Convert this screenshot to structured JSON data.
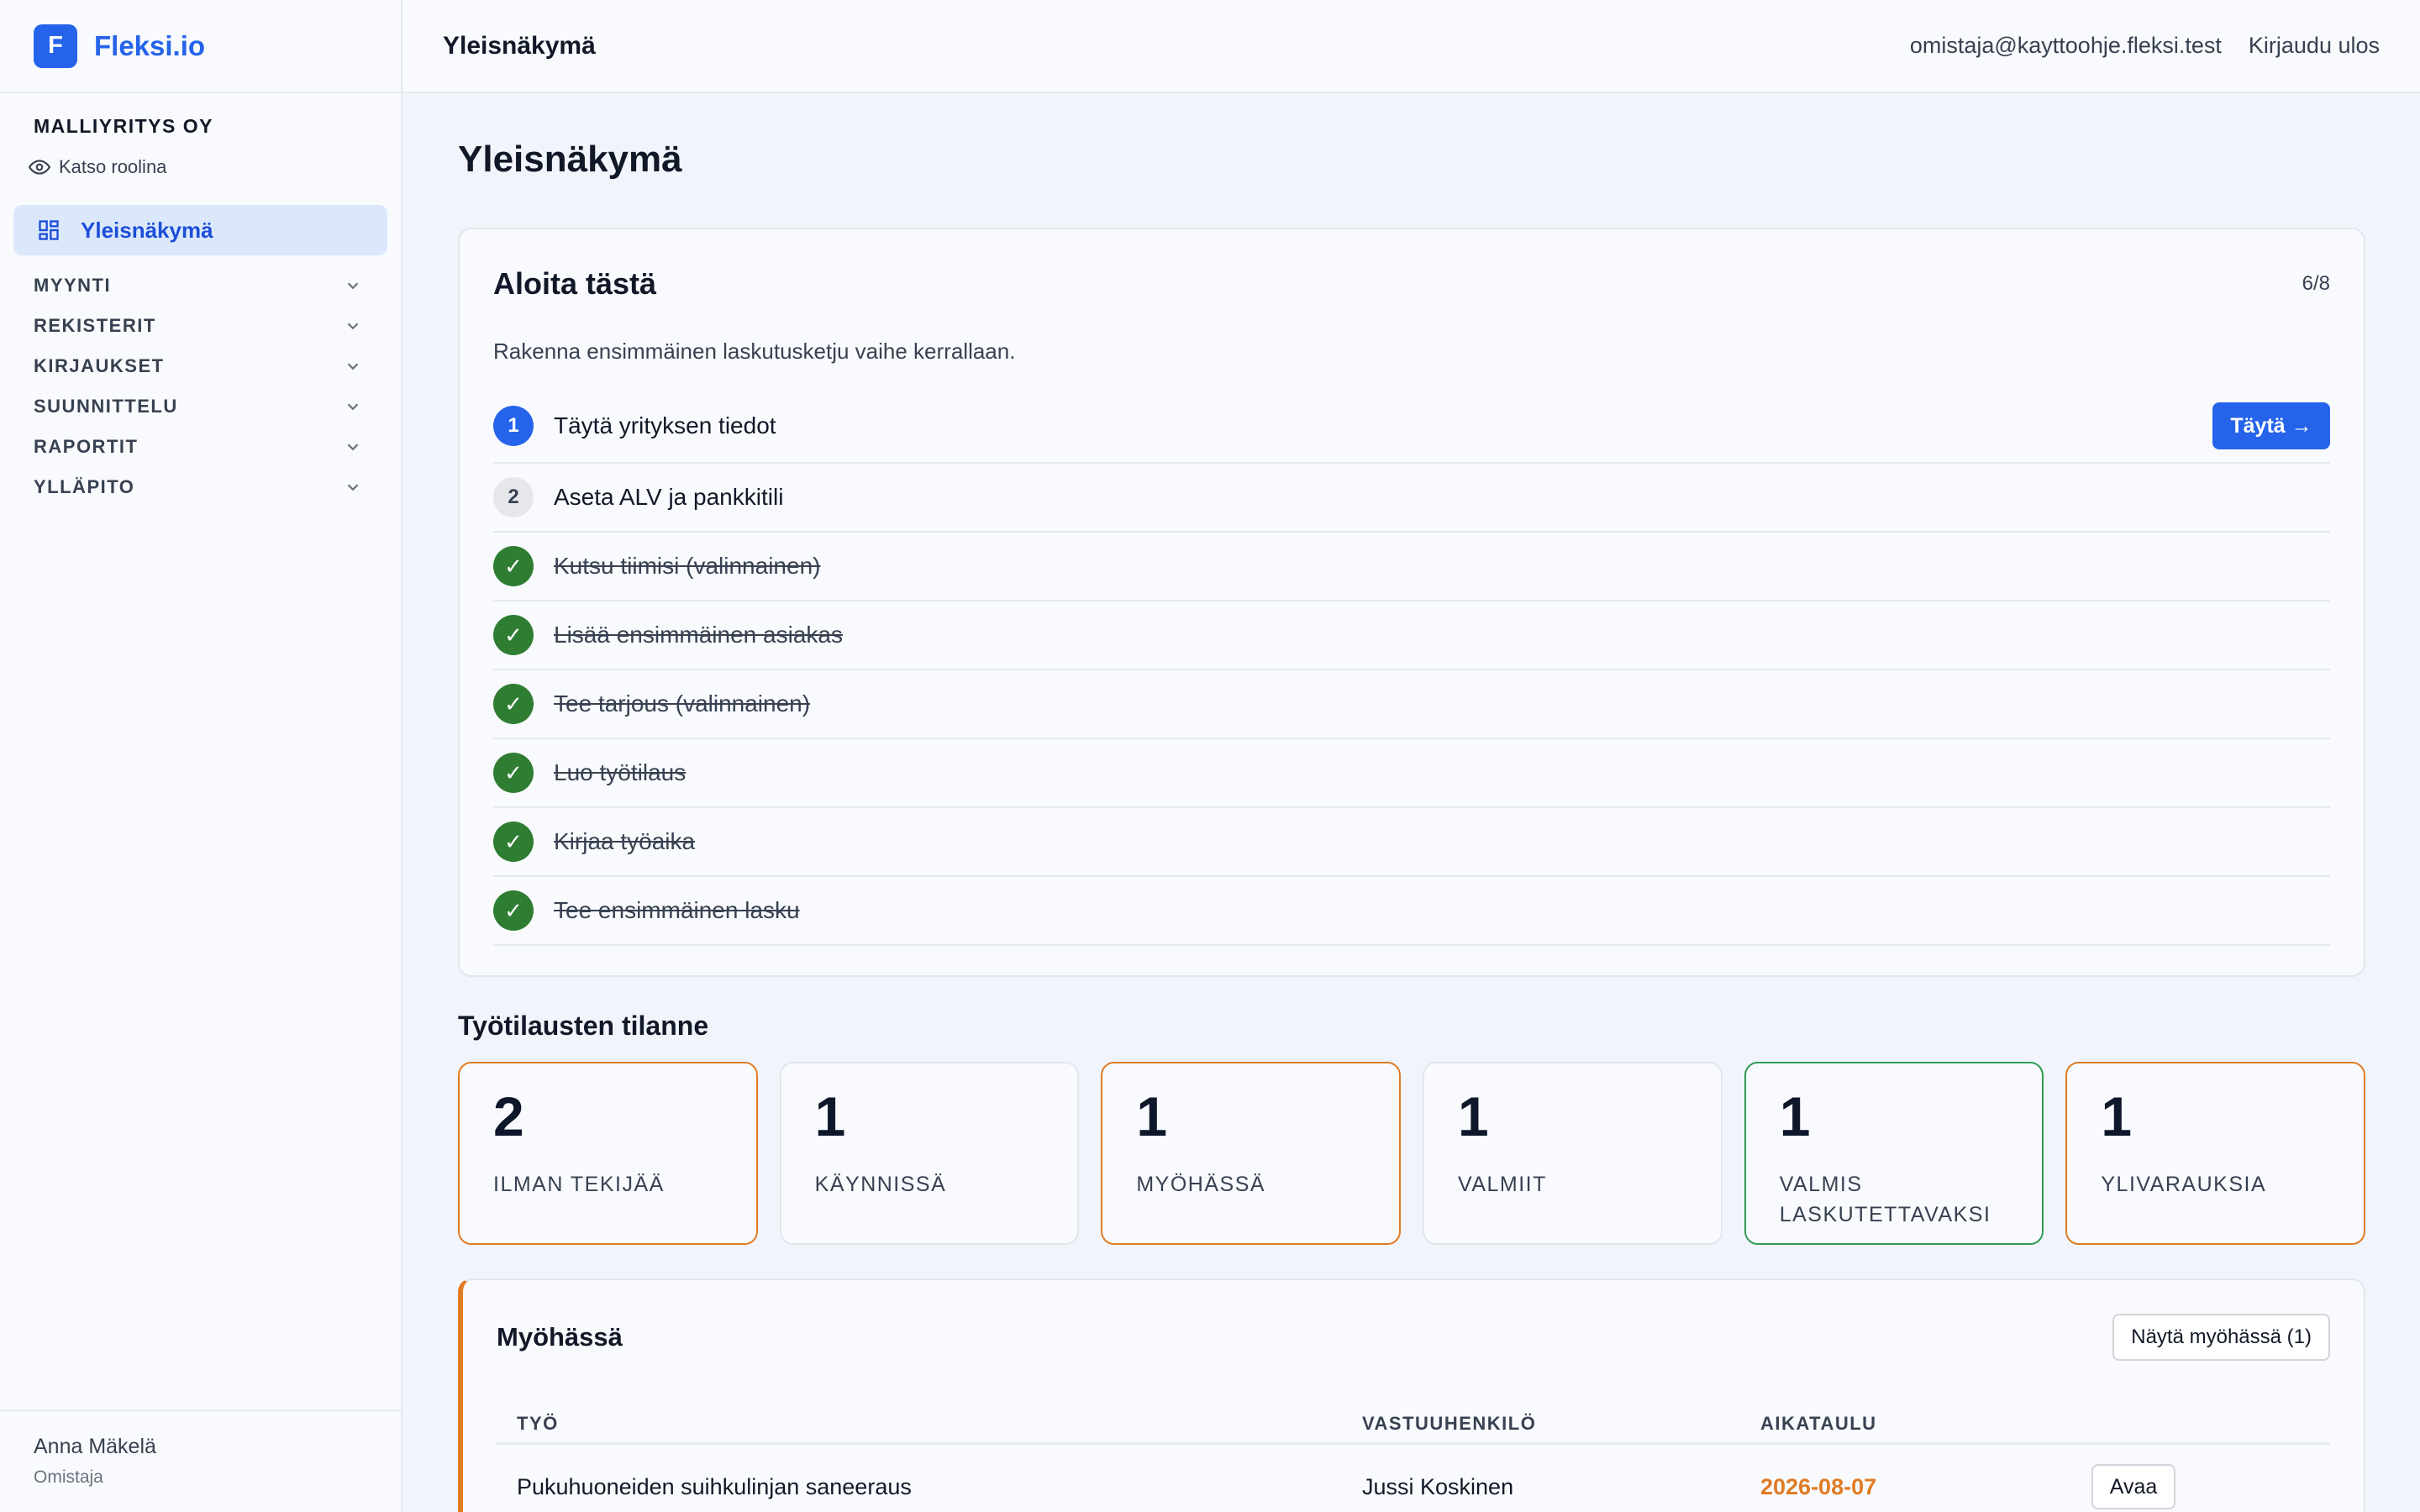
{
  "brand": {
    "logo_letter": "F",
    "name": "Fleksi.io",
    "color": "#2563eb"
  },
  "company": {
    "name": "MALLIYRITYS OY",
    "view_role": "Katso roolina"
  },
  "nav": {
    "active": "Yleisnäkymä",
    "groups": [
      "MYYNTI",
      "REKISTERIT",
      "KIRJAUKSET",
      "SUUNNITTELU",
      "RAPORTIT",
      "YLLÄPITO"
    ]
  },
  "user": {
    "name": "Anna Mäkelä",
    "role": "Omistaja"
  },
  "header": {
    "title": "Yleisnäkymä",
    "email": "omistaja@kayttoohje.fleksi.test",
    "logout": "Kirjaudu ulos"
  },
  "page": {
    "title": "Yleisnäkymä"
  },
  "onboarding": {
    "title": "Aloita tästä",
    "progress": "6/8",
    "subtitle": "Rakenna ensimmäinen laskutusketju vaihe kerrallaan.",
    "action_label": "Täytä →",
    "steps": [
      {
        "badge": "1",
        "label": "Täytä yrityksen tiedot",
        "state": "current"
      },
      {
        "badge": "2",
        "label": "Aseta ALV ja pankkitili",
        "state": "todo"
      },
      {
        "badge": "✓",
        "label": "Kutsu tiimisi (valinnainen)",
        "state": "done"
      },
      {
        "badge": "✓",
        "label": "Lisää ensimmäinen asiakas",
        "state": "done"
      },
      {
        "badge": "✓",
        "label": "Tee tarjous (valinnainen)",
        "state": "done"
      },
      {
        "badge": "✓",
        "label": "Luo työtilaus",
        "state": "done"
      },
      {
        "badge": "✓",
        "label": "Kirjaa työaika",
        "state": "done"
      },
      {
        "badge": "✓",
        "label": "Tee ensimmäinen lasku",
        "state": "done"
      }
    ]
  },
  "orders": {
    "title": "Työtilausten tilanne",
    "stats": [
      {
        "value": "2",
        "label": "ILMAN TEKIJÄÄ",
        "accent": "#e07b24"
      },
      {
        "value": "1",
        "label": "KÄYNNISSÄ",
        "accent": ""
      },
      {
        "value": "1",
        "label": "MYÖHÄSSÄ",
        "accent": "#e07b24"
      },
      {
        "value": "1",
        "label": "VALMIIT",
        "accent": ""
      },
      {
        "value": "1",
        "label": "VALMIS LASKUTETTAVAKSI",
        "accent": "#2e9d52"
      },
      {
        "value": "1",
        "label": "YLIVARAUKSIA",
        "accent": "#e07b24"
      }
    ]
  },
  "late": {
    "title": "Myöhässä",
    "show_button": "Näytä myöhässä (1)",
    "columns": {
      "work": "TYÖ",
      "owner": "VASTUUHENKILÖ",
      "schedule": "AIKATAULU"
    },
    "rows": [
      {
        "work": "Pukuhuoneiden suihkulinjan saneeraus",
        "owner": "Jussi Koskinen",
        "schedule": "2026-08-07",
        "action": "Avaa"
      }
    ]
  }
}
